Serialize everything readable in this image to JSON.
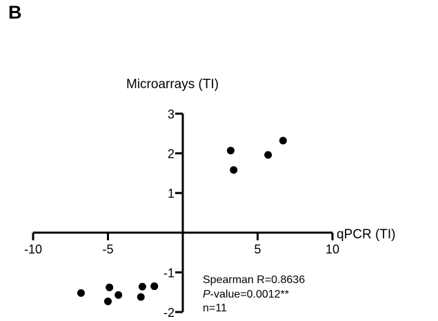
{
  "panel_label": "B",
  "chart_data": {
    "type": "scatter",
    "xlabel": "qPCR (TI)",
    "ylabel": "Microarrays (TI)",
    "xlim": [
      -10,
      10
    ],
    "ylim": [
      -2,
      3
    ],
    "x_ticks": [
      -10,
      -5,
      5,
      10
    ],
    "y_ticks": [
      -2,
      -1,
      1,
      2,
      3
    ],
    "x_tick_labels": [
      "-10",
      "-5",
      "5",
      "10"
    ],
    "y_tick_labels": [
      "-2",
      "-1",
      "1",
      "2",
      "3"
    ],
    "grid": false,
    "axes_style": "crossing-at-origin",
    "marker_color": "#000000",
    "points": [
      {
        "x": -6.8,
        "y": -1.52
      },
      {
        "x": -5.0,
        "y": -1.73
      },
      {
        "x": -4.9,
        "y": -1.38
      },
      {
        "x": -4.3,
        "y": -1.57
      },
      {
        "x": -2.8,
        "y": -1.62
      },
      {
        "x": -2.7,
        "y": -1.36
      },
      {
        "x": -1.9,
        "y": -1.35
      },
      {
        "x": 3.2,
        "y": 2.07
      },
      {
        "x": 3.4,
        "y": 1.58
      },
      {
        "x": 5.7,
        "y": 1.96
      },
      {
        "x": 6.7,
        "y": 2.32
      }
    ],
    "annotation_lines": [
      {
        "prefix": "",
        "italic": "",
        "text": "Spearman R=0.8636"
      },
      {
        "prefix": "",
        "italic": "P",
        "text": "-value=0.0012**"
      },
      {
        "prefix": "",
        "italic": "",
        "text": "n=11"
      }
    ]
  }
}
